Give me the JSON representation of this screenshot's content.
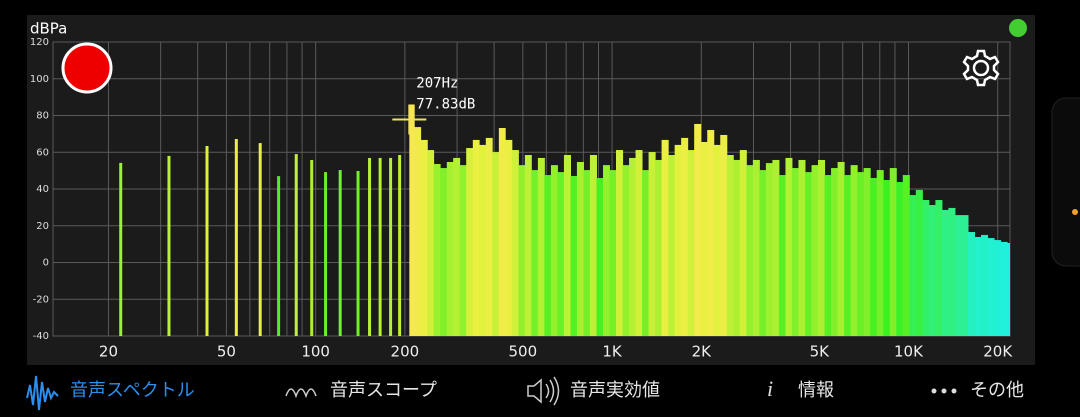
{
  "chart_data": {
    "type": "bar",
    "y_label": "dBPa",
    "log_x": true,
    "grid": true,
    "xlim": [
      13,
      22000
    ],
    "ylim": [
      -40,
      120
    ],
    "yticks": [
      -40,
      -20,
      0,
      20,
      40,
      60,
      80,
      100,
      120
    ],
    "xticks": [
      20,
      50,
      100,
      200,
      500,
      {
        "value": 1000,
        "label": "1K"
      },
      {
        "value": 2000,
        "label": "2K"
      },
      {
        "value": 5000,
        "label": "5K"
      },
      {
        "value": 10000,
        "label": "10K"
      },
      {
        "value": 20000,
        "label": "20K"
      }
    ],
    "xgrid": [
      20,
      30,
      40,
      50,
      60,
      70,
      80,
      90,
      100,
      200,
      300,
      400,
      500,
      600,
      700,
      800,
      900,
      1000,
      2000,
      3000,
      4000,
      5000,
      6000,
      7000,
      8000,
      9000,
      10000,
      20000
    ],
    "x": [
      22,
      32,
      43,
      54,
      65,
      75,
      86,
      97,
      108,
      121,
      139,
      152,
      165,
      179,
      192,
      207,
      215,
      226,
      238,
      250,
      263,
      277,
      291,
      306,
      322,
      339,
      356,
      375,
      394,
      415,
      436,
      459,
      483,
      508,
      534,
      562,
      591,
      622,
      654,
      688,
      724,
      761,
      801,
      842,
      886,
      932,
      980,
      1031,
      1085,
      1141,
      1200,
      1262,
      1328,
      1397,
      1469,
      1546,
      1626,
      1710,
      1799,
      1892,
      1991,
      2094,
      2203,
      2317,
      2438,
      2564,
      2697,
      2837,
      2985,
      3140,
      3303,
      3474,
      3655,
      3845,
      4044,
      4254,
      4475,
      4708,
      4952,
      5210,
      5480,
      5765,
      6064,
      6379,
      6711,
      7059,
      7426,
      7812,
      8218,
      8645,
      9094,
      9566,
      10063,
      10586,
      11136,
      11714,
      12323,
      12963,
      13637,
      14346,
      15091,
      15876,
      16700,
      17568,
      18481,
      19441,
      20452,
      21514
    ],
    "values": [
      54.2,
      58,
      63.4,
      67.2,
      65,
      47,
      59,
      55.8,
      49.2,
      50.3,
      49.8,
      56.9,
      56.9,
      56.9,
      58.5,
      86,
      73.7,
      66.7,
      61.2,
      53.6,
      51.4,
      54.7,
      56.9,
      53,
      62.3,
      66.7,
      64,
      67.8,
      60.1,
      73.2,
      66.7,
      61.2,
      53,
      58.5,
      50.3,
      56.9,
      47.6,
      53,
      49.2,
      58.5,
      47.1,
      54.7,
      50.3,
      58.5,
      46,
      53,
      50.3,
      61.2,
      53,
      56.9,
      61.2,
      50.3,
      60.1,
      55.8,
      66.7,
      58.5,
      64,
      67.8,
      61.2,
      75.4,
      65.6,
      72.1,
      64,
      69.4,
      58.5,
      55.8,
      61.2,
      53,
      55.8,
      50.3,
      54.1,
      55.8,
      47.6,
      56.9,
      51.4,
      55.8,
      49.2,
      53,
      55.8,
      47.6,
      51.4,
      54.7,
      47.6,
      53,
      49.2,
      51.4,
      46,
      50.3,
      44.9,
      51.4,
      43.8,
      47.6,
      36.7,
      39.5,
      34,
      31.3,
      34,
      28.6,
      29.7,
      25.8,
      25.8,
      16.6,
      13.9,
      15,
      13.3,
      12.2,
      11.2,
      10.6
    ],
    "cursor": {
      "x": 207,
      "y": 77.83,
      "x_label": "207Hz",
      "y_label": "77.83dB"
    }
  },
  "tabs": [
    "音声スペクトル",
    "音声スコープ",
    "音声実効値",
    "情報",
    "その他"
  ]
}
